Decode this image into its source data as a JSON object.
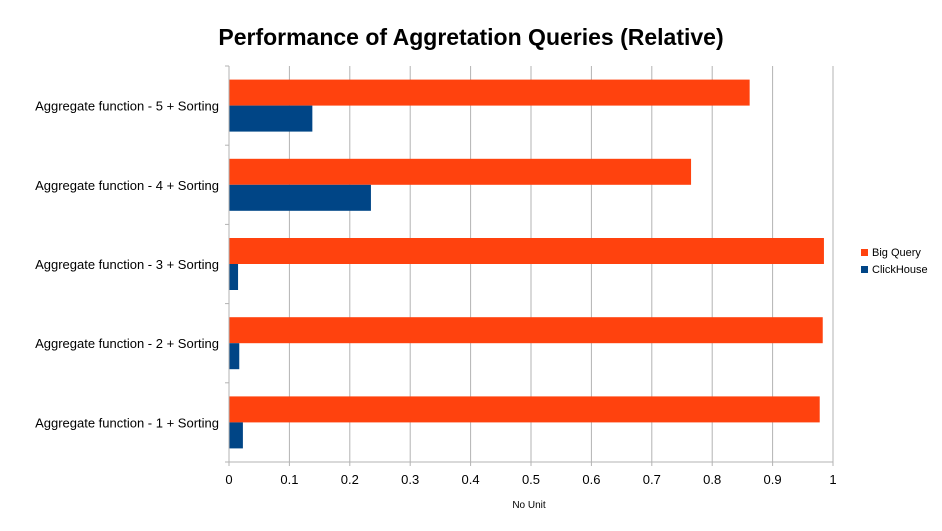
{
  "chart_data": {
    "type": "bar",
    "orientation": "horizontal",
    "title": "Performance of Aggretation Queries (Relative)",
    "xlabel": "No Unit",
    "ylabel": "",
    "xlim": [
      0,
      1
    ],
    "xticks": [
      "0",
      "0.1",
      "0.2",
      "0.3",
      "0.4",
      "0.5",
      "0.6",
      "0.7",
      "0.8",
      "0.9",
      "1"
    ],
    "grid": true,
    "legend_position": "right",
    "categories": [
      "Aggregate function - 1 + Sorting",
      "Aggregate function - 2 + Sorting",
      "Aggregate function - 3 + Sorting",
      "Aggregate function - 4 + Sorting",
      "Aggregate function - 5 + Sorting"
    ],
    "series": [
      {
        "name": "Big Query",
        "color": "#ff420e",
        "values": [
          0.978,
          0.983,
          0.985,
          0.765,
          0.862
        ]
      },
      {
        "name": "ClickHouse",
        "color": "#004586",
        "values": [
          0.023,
          0.017,
          0.015,
          0.235,
          0.138
        ]
      }
    ]
  }
}
